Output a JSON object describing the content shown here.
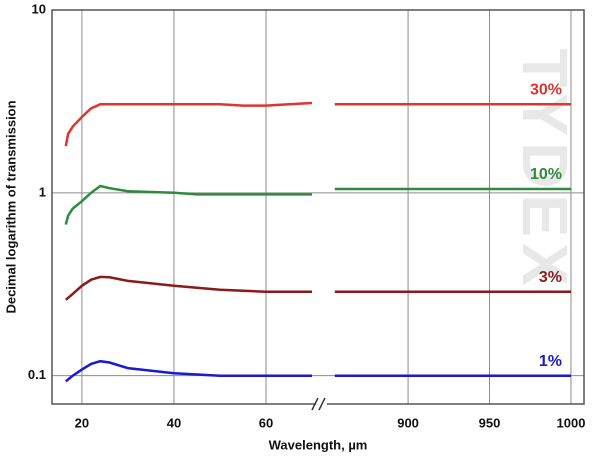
{
  "chart_data": {
    "type": "line",
    "log_y": true,
    "grid": true,
    "ylabel": "Decimal logarithm of transmission",
    "xlabel": "Wavelength, µm",
    "watermark": "TYDEX",
    "ylim": [
      0.07,
      10
    ],
    "yticks": [
      0.1,
      1,
      10
    ],
    "x_segments": [
      {
        "xlim": [
          13.5,
          71.3
        ],
        "xticks": [
          20,
          40,
          60
        ]
      },
      {
        "xlim": [
          849,
          1008
        ],
        "xticks": [
          900,
          950,
          1000
        ]
      }
    ],
    "series": [
      {
        "name": "30%",
        "color": "#e0342f",
        "segments": [
          {
            "x": [
              16.5,
              17,
              18,
              20,
              22,
              24,
              30,
              40,
              50,
              55,
              60,
              65,
              70
            ],
            "values": [
              1.8,
              2.1,
              2.3,
              2.6,
              2.9,
              3.05,
              3.05,
              3.05,
              3.05,
              3.0,
              3.0,
              3.05,
              3.1
            ]
          },
          {
            "x": [
              855,
              900,
              950,
              1000
            ],
            "values": [
              3.05,
              3.05,
              3.05,
              3.05
            ]
          }
        ]
      },
      {
        "name": "10%",
        "color": "#2e8b3e",
        "segments": [
          {
            "x": [
              16.5,
              17,
              18,
              20,
              22,
              24,
              26,
              30,
              40,
              45,
              50,
              60,
              70
            ],
            "values": [
              0.67,
              0.75,
              0.82,
              0.9,
              1.0,
              1.09,
              1.06,
              1.02,
              1.0,
              0.98,
              0.98,
              0.98,
              0.98
            ]
          },
          {
            "x": [
              855,
              900,
              950,
              1000
            ],
            "values": [
              1.05,
              1.05,
              1.05,
              1.05
            ]
          }
        ]
      },
      {
        "name": "3%",
        "color": "#8b1a1a",
        "segments": [
          {
            "x": [
              16.5,
              18,
              20,
              22,
              24,
              26,
              30,
              40,
              50,
              60,
              70
            ],
            "values": [
              0.26,
              0.28,
              0.31,
              0.335,
              0.347,
              0.345,
              0.33,
              0.31,
              0.295,
              0.288,
              0.288
            ]
          },
          {
            "x": [
              855,
              900,
              950,
              1000
            ],
            "values": [
              0.288,
              0.288,
              0.288,
              0.288
            ]
          }
        ]
      },
      {
        "name": "1%",
        "color": "#1a1ad0",
        "segments": [
          {
            "x": [
              16.5,
              18,
              20,
              22,
              24,
              26,
              30,
              40,
              50,
              60,
              70
            ],
            "values": [
              0.093,
              0.1,
              0.108,
              0.116,
              0.12,
              0.118,
              0.11,
              0.103,
              0.1,
              0.1,
              0.1
            ]
          },
          {
            "x": [
              855,
              900,
              950,
              1000
            ],
            "values": [
              0.1,
              0.1,
              0.1,
              0.1
            ]
          }
        ]
      }
    ]
  }
}
